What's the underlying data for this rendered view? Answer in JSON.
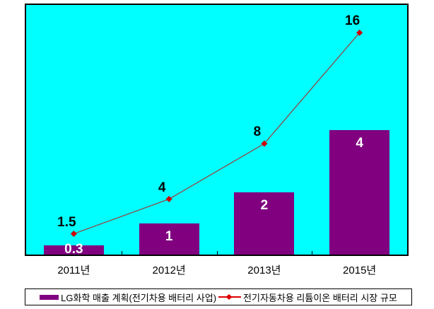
{
  "chart_data": {
    "type": "combo-bar-line",
    "title": "",
    "categories": [
      "2011년",
      "2012년",
      "2013년",
      "2015년"
    ],
    "series": [
      {
        "name": "LG화학 매출 계획(전기차용 배터리 사업)",
        "type": "bar",
        "values": [
          0.3,
          1,
          2,
          4
        ],
        "labels": [
          "0.3",
          "1",
          "2",
          "4"
        ],
        "color": "#800080",
        "label_color": "#ffffff",
        "axis_max": 8
      },
      {
        "name": "전기자동차용 리튬이온 배터리 시장 규모",
        "type": "line",
        "values": [
          1.5,
          4,
          8,
          16
        ],
        "labels": [
          "1.5",
          "4",
          "8",
          "16"
        ],
        "color": "#9e3a3a",
        "marker_color": "#cc0000",
        "legend_color": "#dd0000",
        "label_color": "#000000",
        "axis_max": 18
      }
    ],
    "plot_background": "#00ffff",
    "border_color": "#000000",
    "grid": false,
    "legend_position": "bottom",
    "xlabel": "",
    "ylabel": ""
  }
}
